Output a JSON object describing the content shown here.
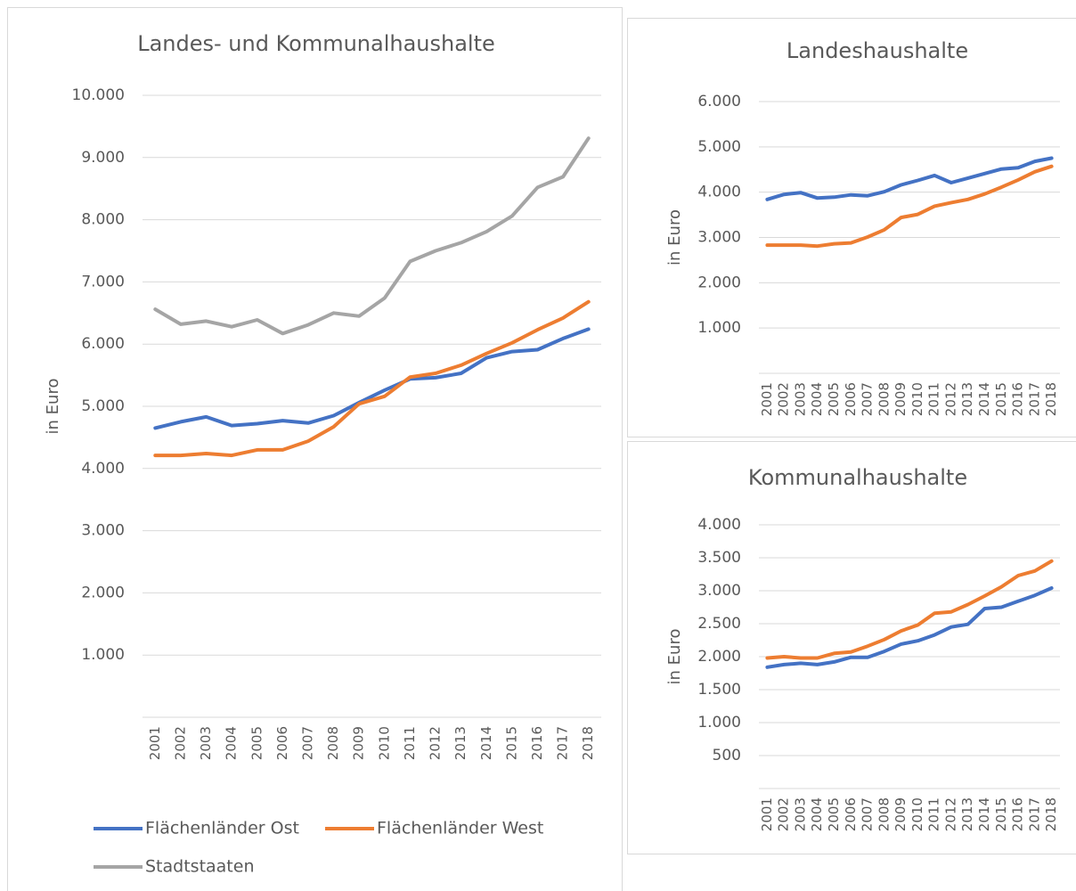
{
  "chart_data": [
    {
      "type": "line",
      "title": "Landes- und Kommunalhaushalte",
      "y_label": "in Euro",
      "categories": [
        "2001",
        "2002",
        "2003",
        "2004",
        "2005",
        "2006",
        "2007",
        "2008",
        "2009",
        "2010",
        "2011",
        "2012",
        "2013",
        "2014",
        "2015",
        "2016",
        "2017",
        "2018"
      ],
      "series": [
        {
          "name": "Flächenländer Ost",
          "color": "#4472c4",
          "values": [
            4650,
            4750,
            4830,
            4690,
            4720,
            4770,
            4730,
            4850,
            5060,
            5260,
            5440,
            5460,
            5530,
            5780,
            5880,
            5910,
            6090,
            6240
          ]
        },
        {
          "name": "Flächenländer West",
          "color": "#ed7d31",
          "values": [
            4210,
            4210,
            4240,
            4210,
            4300,
            4300,
            4440,
            4670,
            5040,
            5160,
            5470,
            5530,
            5660,
            5850,
            6020,
            6230,
            6420,
            6680
          ]
        },
        {
          "name": "Stadtstaaten",
          "color": "#a5a5a5",
          "values": [
            6560,
            6320,
            6370,
            6280,
            6390,
            6170,
            6310,
            6500,
            6450,
            6740,
            7330,
            7500,
            7630,
            7810,
            8060,
            8520,
            8690,
            9310
          ]
        }
      ],
      "ylim": [
        0,
        10000
      ],
      "yticks": [
        {
          "value": 1000,
          "label": "1.000"
        },
        {
          "value": 2000,
          "label": "2.000"
        },
        {
          "value": 3000,
          "label": "3.000"
        },
        {
          "value": 4000,
          "label": "4.000"
        },
        {
          "value": 5000,
          "label": "5.000"
        },
        {
          "value": 6000,
          "label": "6.000"
        },
        {
          "value": 7000,
          "label": "7.000"
        },
        {
          "value": 8000,
          "label": "8.000"
        },
        {
          "value": 9000,
          "label": "9.000"
        },
        {
          "value": 10000,
          "label": "10.000"
        }
      ],
      "grid": true,
      "legend": "bottom"
    },
    {
      "type": "line",
      "title": "Landeshaushalte",
      "y_label": "in Euro",
      "categories": [
        "2001",
        "2002",
        "2003",
        "2004",
        "2005",
        "2006",
        "2007",
        "2008",
        "2009",
        "2010",
        "2011",
        "2012",
        "2013",
        "2014",
        "2015",
        "2016",
        "2017",
        "2018"
      ],
      "series": [
        {
          "color": "#4472c4",
          "values": [
            3840,
            3950,
            3990,
            3870,
            3890,
            3940,
            3920,
            4010,
            4160,
            4260,
            4370,
            4210,
            4310,
            4410,
            4510,
            4540,
            4680,
            4750
          ]
        },
        {
          "color": "#ed7d31",
          "values": [
            2830,
            2830,
            2830,
            2810,
            2860,
            2880,
            3010,
            3170,
            3440,
            3510,
            3690,
            3770,
            3840,
            3960,
            4110,
            4270,
            4450,
            4570
          ]
        }
      ],
      "ylim": [
        0,
        6000
      ],
      "yticks": [
        {
          "value": 1000,
          "label": "1.000"
        },
        {
          "value": 2000,
          "label": "2.000"
        },
        {
          "value": 3000,
          "label": "3.000"
        },
        {
          "value": 4000,
          "label": "4.000"
        },
        {
          "value": 5000,
          "label": "5.000"
        },
        {
          "value": 6000,
          "label": "6.000"
        }
      ],
      "grid": true
    },
    {
      "type": "line",
      "title": "Kommunalhaushalte",
      "y_label": "in Euro",
      "categories": [
        "2001",
        "2002",
        "2003",
        "2004",
        "2005",
        "2006",
        "2007",
        "2008",
        "2009",
        "2010",
        "2011",
        "2012",
        "2013",
        "2014",
        "2015",
        "2016",
        "2017",
        "2018"
      ],
      "series": [
        {
          "color": "#4472c4",
          "values": [
            1840,
            1880,
            1900,
            1880,
            1920,
            1990,
            1990,
            2080,
            2190,
            2240,
            2330,
            2450,
            2490,
            2730,
            2750,
            2840,
            2930,
            3040
          ]
        },
        {
          "color": "#ed7d31",
          "values": [
            1980,
            2000,
            1980,
            1980,
            2050,
            2070,
            2160,
            2260,
            2390,
            2480,
            2660,
            2680,
            2790,
            2920,
            3060,
            3230,
            3300,
            3450
          ]
        }
      ],
      "ylim": [
        0,
        4000
      ],
      "yticks": [
        500,
        {
          "value": 1000,
          "label": "1.000"
        },
        {
          "value": 1500,
          "label": "1.500"
        },
        {
          "value": 2000,
          "label": "2.000"
        },
        {
          "value": 2500,
          "label": "2.500"
        },
        {
          "value": 3000,
          "label": "3.000"
        },
        {
          "value": 3500,
          "label": "3.500"
        },
        {
          "value": 4000,
          "label": "4.000"
        }
      ],
      "grid": true
    }
  ]
}
